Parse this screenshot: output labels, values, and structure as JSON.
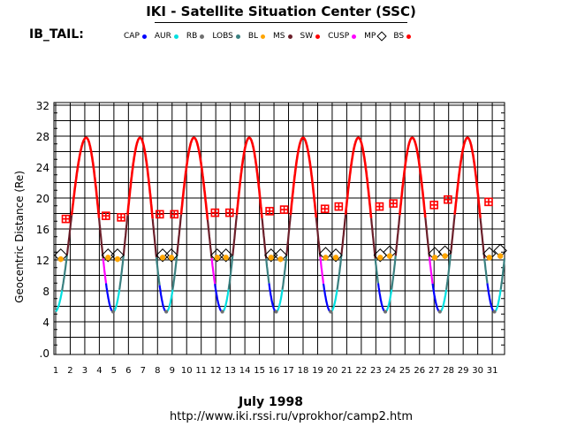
{
  "header": {
    "title": "IKI - Satellite Situation Center (SSC)",
    "satellite": "IB_TAIL:"
  },
  "legend": [
    {
      "label": "CAP",
      "color": "#0000ff",
      "marker": "dot"
    },
    {
      "label": "AUR",
      "color": "#00e0e0",
      "marker": "dot"
    },
    {
      "label": "RB",
      "color": "#707070",
      "marker": "dot"
    },
    {
      "label": "LOBS",
      "color": "#3a8080",
      "marker": "dot"
    },
    {
      "label": "BL",
      "color": "#ffa500",
      "marker": "dot"
    },
    {
      "label": "MS",
      "color": "#6b1f2a",
      "marker": "dot"
    },
    {
      "label": "SW",
      "color": "#ff0000",
      "marker": "dot"
    },
    {
      "label": "CUSP",
      "color": "#ff00ff",
      "marker": "dot"
    },
    {
      "label": "MP",
      "color": "#000000",
      "marker": "diamond"
    },
    {
      "label": "BS",
      "color": "#ff0000",
      "marker": "dot"
    }
  ],
  "footer": {
    "month": "July    1998",
    "url": "http://www.iki.rssi.ru/vprokhor/camp2.htm"
  },
  "chart_data": {
    "type": "line",
    "ylabel": "Geocentric Distance (Re)",
    "ylim": [
      0,
      33
    ],
    "yticks": [
      0,
      4,
      8,
      12,
      16,
      20,
      24,
      28,
      32
    ],
    "ytick_labels": [
      ".0",
      "4",
      "8",
      "12",
      "16",
      "20",
      "24",
      "28",
      "32"
    ],
    "xlim": [
      1,
      32
    ],
    "xticks": [
      1,
      2,
      3,
      4,
      5,
      6,
      7,
      8,
      9,
      10,
      11,
      12,
      13,
      14,
      15,
      16,
      17,
      18,
      19,
      20,
      21,
      22,
      23,
      24,
      25,
      26,
      27,
      28,
      29,
      30,
      31
    ],
    "grid": true,
    "orbit": {
      "apogee_re": 27.8,
      "perigee_re": 5.3,
      "perigee_days": [
        4.95,
        8.6,
        12.45,
        16.15,
        19.9,
        23.65,
        27.4,
        31.15
      ],
      "apogee_days": [
        3.1,
        6.8,
        10.5,
        14.3,
        18.0,
        21.8,
        25.5,
        29.3
      ]
    },
    "regions": {
      "solar_wind_above_re": 17.5,
      "magnetosheath_re": [
        12.5,
        17.5
      ],
      "cusp_re": [
        8.5,
        12.5
      ],
      "near_perigee_re": [
        5.3,
        8.5
      ]
    },
    "bow_shock_crossings": [
      {
        "day": 1.7,
        "re": 17.3
      },
      {
        "day": 4.45,
        "re": 17.7
      },
      {
        "day": 5.5,
        "re": 17.5
      },
      {
        "day": 8.15,
        "re": 17.9
      },
      {
        "day": 9.15,
        "re": 17.9
      },
      {
        "day": 11.95,
        "re": 18.1
      },
      {
        "day": 12.95,
        "re": 18.1
      },
      {
        "day": 15.7,
        "re": 18.3
      },
      {
        "day": 16.7,
        "re": 18.5
      },
      {
        "day": 19.5,
        "re": 18.6
      },
      {
        "day": 20.45,
        "re": 18.9
      },
      {
        "day": 23.25,
        "re": 18.9
      },
      {
        "day": 24.2,
        "re": 19.3
      },
      {
        "day": 27.0,
        "re": 19.1
      },
      {
        "day": 27.95,
        "re": 19.8
      },
      {
        "day": 30.75,
        "re": 19.5
      }
    ],
    "magnetopause_crossings": [
      {
        "day": 1.35,
        "re": 12.6
      },
      {
        "day": 4.6,
        "re": 12.6
      },
      {
        "day": 5.25,
        "re": 12.6
      },
      {
        "day": 8.35,
        "re": 12.6
      },
      {
        "day": 8.95,
        "re": 12.6
      },
      {
        "day": 12.1,
        "re": 12.6
      },
      {
        "day": 12.7,
        "re": 12.6
      },
      {
        "day": 15.8,
        "re": 12.6
      },
      {
        "day": 16.45,
        "re": 12.6
      },
      {
        "day": 19.55,
        "re": 12.8
      },
      {
        "day": 20.25,
        "re": 12.6
      },
      {
        "day": 23.3,
        "re": 12.6
      },
      {
        "day": 23.95,
        "re": 13.0
      },
      {
        "day": 27.05,
        "re": 12.8
      },
      {
        "day": 27.75,
        "re": 13.0
      },
      {
        "day": 30.8,
        "re": 12.8
      },
      {
        "day": 31.55,
        "re": 13.2
      }
    ],
    "boundary_layer_points": [
      {
        "day": 1.35,
        "re": 12.1
      },
      {
        "day": 4.6,
        "re": 12.3
      },
      {
        "day": 5.25,
        "re": 12.1
      },
      {
        "day": 8.35,
        "re": 12.3
      },
      {
        "day": 8.95,
        "re": 12.3
      },
      {
        "day": 12.1,
        "re": 12.3
      },
      {
        "day": 12.7,
        "re": 12.3
      },
      {
        "day": 15.8,
        "re": 12.3
      },
      {
        "day": 16.45,
        "re": 12.1
      },
      {
        "day": 19.55,
        "re": 12.3
      },
      {
        "day": 20.25,
        "re": 12.3
      },
      {
        "day": 23.3,
        "re": 12.3
      },
      {
        "day": 23.95,
        "re": 12.5
      },
      {
        "day": 27.05,
        "re": 12.3
      },
      {
        "day": 27.75,
        "re": 12.5
      },
      {
        "day": 30.8,
        "re": 12.3
      },
      {
        "day": 31.55,
        "re": 12.5
      }
    ]
  }
}
